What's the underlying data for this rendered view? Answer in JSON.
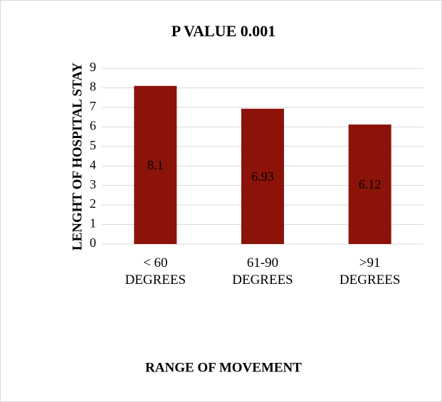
{
  "chart_data": {
    "type": "bar",
    "title": "P VALUE 0.001",
    "categories": [
      "< 60 DEGREES",
      "61-90 DEGREES",
      ">91 DEGREES"
    ],
    "values": [
      8.1,
      6.93,
      6.12
    ],
    "color": "#8b1309",
    "xlabel": "RANGE OF MOVEMENT",
    "ylabel": "LENGHT OF HOSPITAL STAY",
    "ylim": [
      0,
      9
    ],
    "yticks": [
      0,
      1,
      2,
      3,
      4,
      5,
      6,
      7,
      8,
      9
    ],
    "grid": true
  }
}
